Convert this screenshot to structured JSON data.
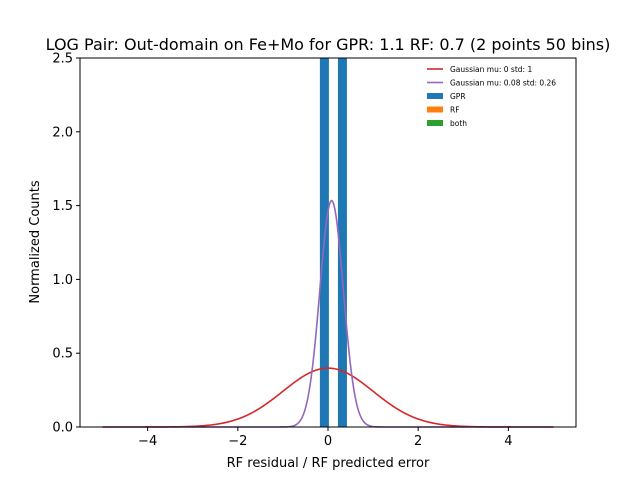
{
  "chart_data": {
    "type": "bar",
    "title": "LOG Pair: Out-domain on Fe+Mo for GPR: 1.1 RF: 0.7 (2 points 50 bins)",
    "xlabel": "RF residual / RF predicted error",
    "ylabel": "Normalized Counts",
    "xlim": [
      -5.5,
      5.5
    ],
    "ylim": [
      0,
      2.5
    ],
    "x_ticks": [
      -4,
      -2,
      0,
      2,
      4
    ],
    "x_tick_labels": [
      "−4",
      "−2",
      "0",
      "2",
      "4"
    ],
    "y_ticks": [
      0,
      0.5,
      1.0,
      1.5,
      2.0,
      2.5
    ],
    "y_tick_labels": [
      "0.0",
      "0.5",
      "1.0",
      "1.5",
      "2.0",
      "2.5"
    ],
    "grid": false,
    "legend_position": "top-right",
    "histograms": [
      {
        "name": "GPR",
        "color": "#1f77b4",
        "bars": [
          {
            "x0": -0.18,
            "x1": 0.02,
            "height": 2.5
          },
          {
            "x0": 0.22,
            "x1": 0.42,
            "height": 2.5
          }
        ]
      },
      {
        "name": "RF",
        "color": "#ff7f0e",
        "bars": []
      },
      {
        "name": "both",
        "color": "#2ca02c",
        "bars": []
      }
    ],
    "curves": [
      {
        "name": "Gaussian mu: 0 std: 1",
        "color": "#d62728",
        "mu": 0,
        "std": 1,
        "x_range": [
          -5,
          5
        ]
      },
      {
        "name": "Gaussian mu: 0.08 std: 0.26",
        "color": "#9467bd",
        "mu": 0.08,
        "std": 0.26,
        "x_range": [
          -5,
          5
        ]
      }
    ]
  }
}
